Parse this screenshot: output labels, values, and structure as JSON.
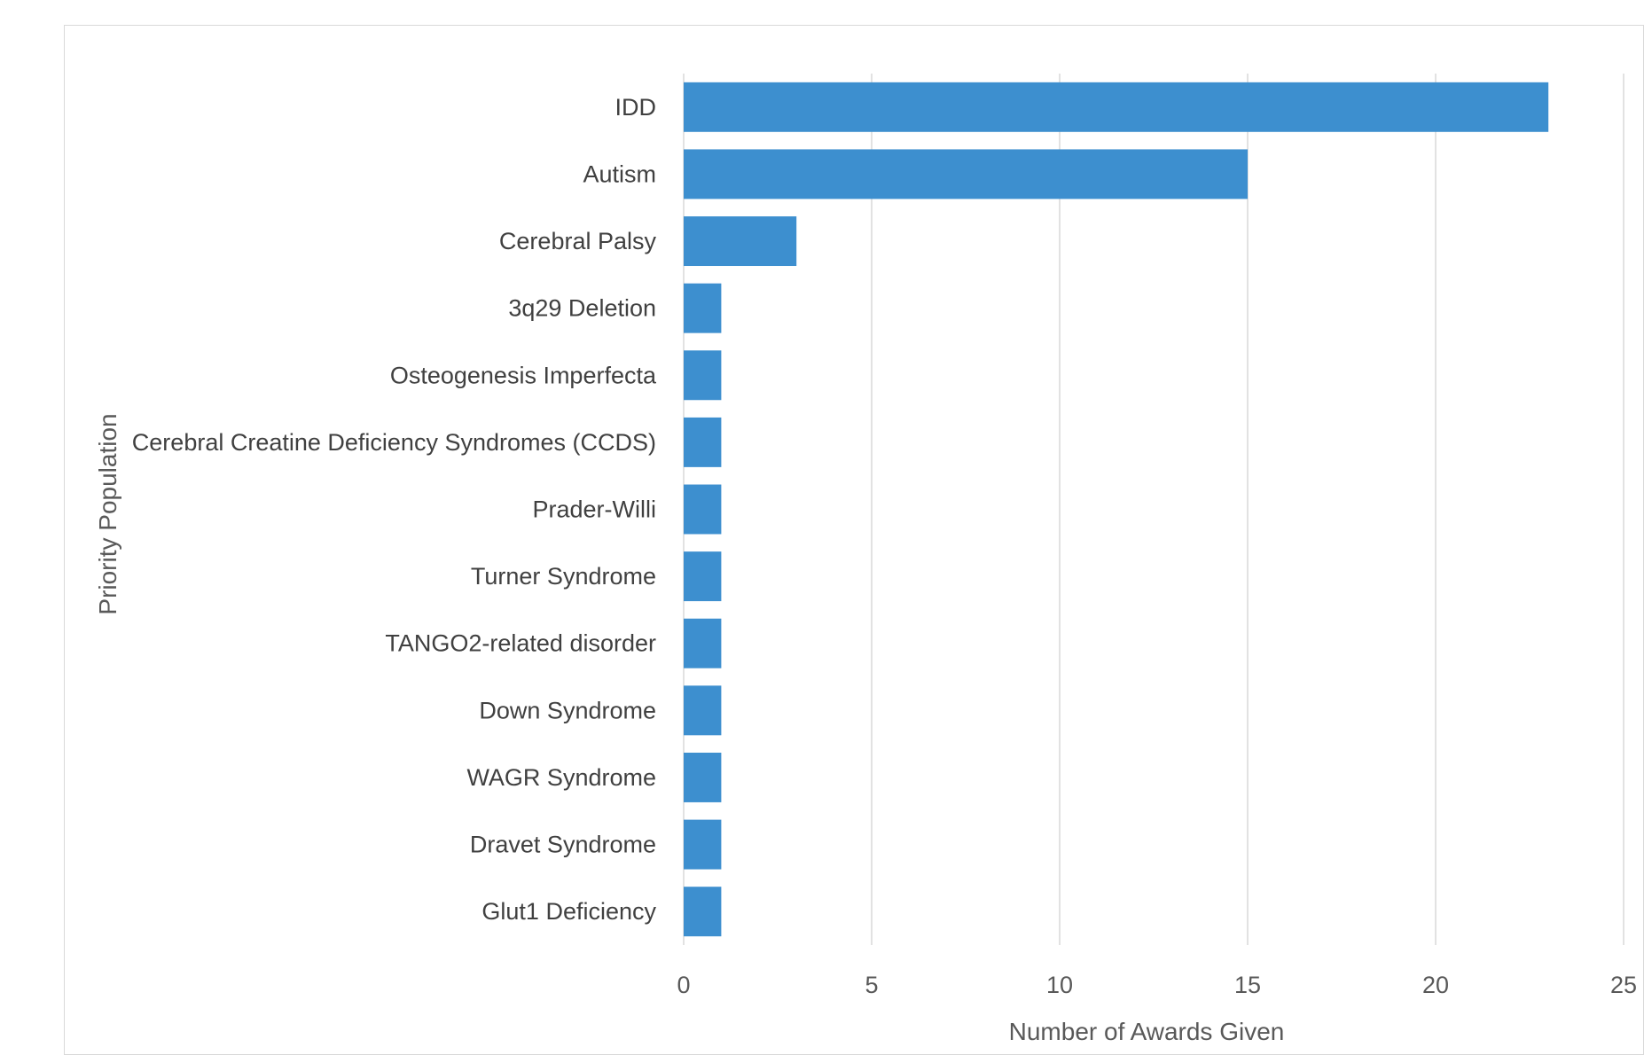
{
  "chart_data": {
    "type": "bar",
    "orientation": "horizontal",
    "title": "",
    "xlabel": "Number of Awards Given",
    "ylabel": "Priority Population",
    "categories": [
      "IDD",
      "Autism",
      "Cerebral Palsy",
      "3q29 Deletion",
      "Osteogenesis Imperfecta",
      "Cerebral Creatine Deficiency Syndromes (CCDS)",
      "Prader-Willi",
      "Turner Syndrome",
      "TANGO2-related disorder",
      "Down Syndrome",
      "WAGR Syndrome",
      "Dravet Syndrome",
      "Glut1 Deficiency"
    ],
    "values": [
      23,
      15,
      3,
      1,
      1,
      1,
      1,
      1,
      1,
      1,
      1,
      1,
      1
    ],
    "x_ticks": [
      0,
      5,
      10,
      15,
      20,
      25
    ],
    "xlim": [
      0,
      25
    ],
    "grid": "vertical",
    "legend": "none",
    "bar_color": "#3d8fcf",
    "grid_color": "#d9d9d9"
  }
}
